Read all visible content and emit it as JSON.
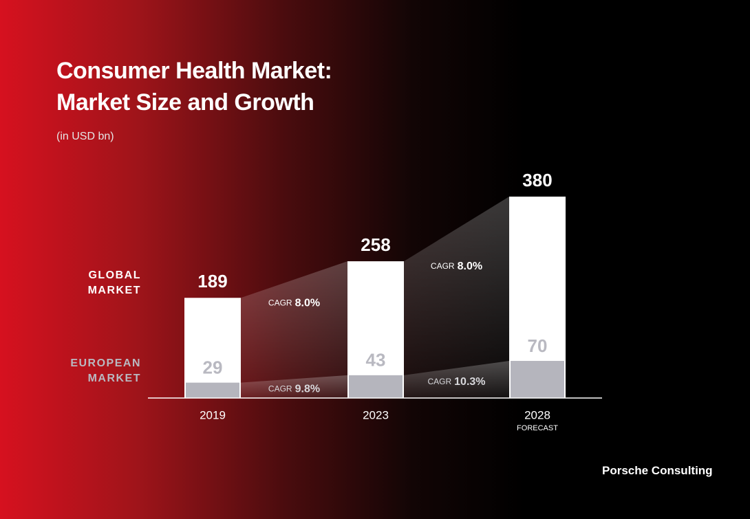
{
  "chart_data": {
    "type": "bar",
    "title": "Consumer Health Market: Market Size and Growth",
    "subtitle": "(in USD bn)",
    "categories": [
      "2019",
      "2023",
      "2028"
    ],
    "category_sublabels": [
      null,
      null,
      "FORECAST"
    ],
    "series": [
      {
        "name": "GLOBAL MARKET",
        "color": "#ffffff",
        "label_color": "#ffffff",
        "values": [
          189,
          258,
          380
        ],
        "cagr": [
          "8.0%",
          "8.0%"
        ]
      },
      {
        "name": "EUROPEAN MARKET",
        "color": "#b5b5bd",
        "label_color": "#b9b9c1",
        "values": [
          29,
          43,
          70
        ],
        "cagr": [
          "9.8%",
          "10.3%"
        ]
      }
    ],
    "cagr_label": "CAGR",
    "source": "Porsche Consulting"
  }
}
